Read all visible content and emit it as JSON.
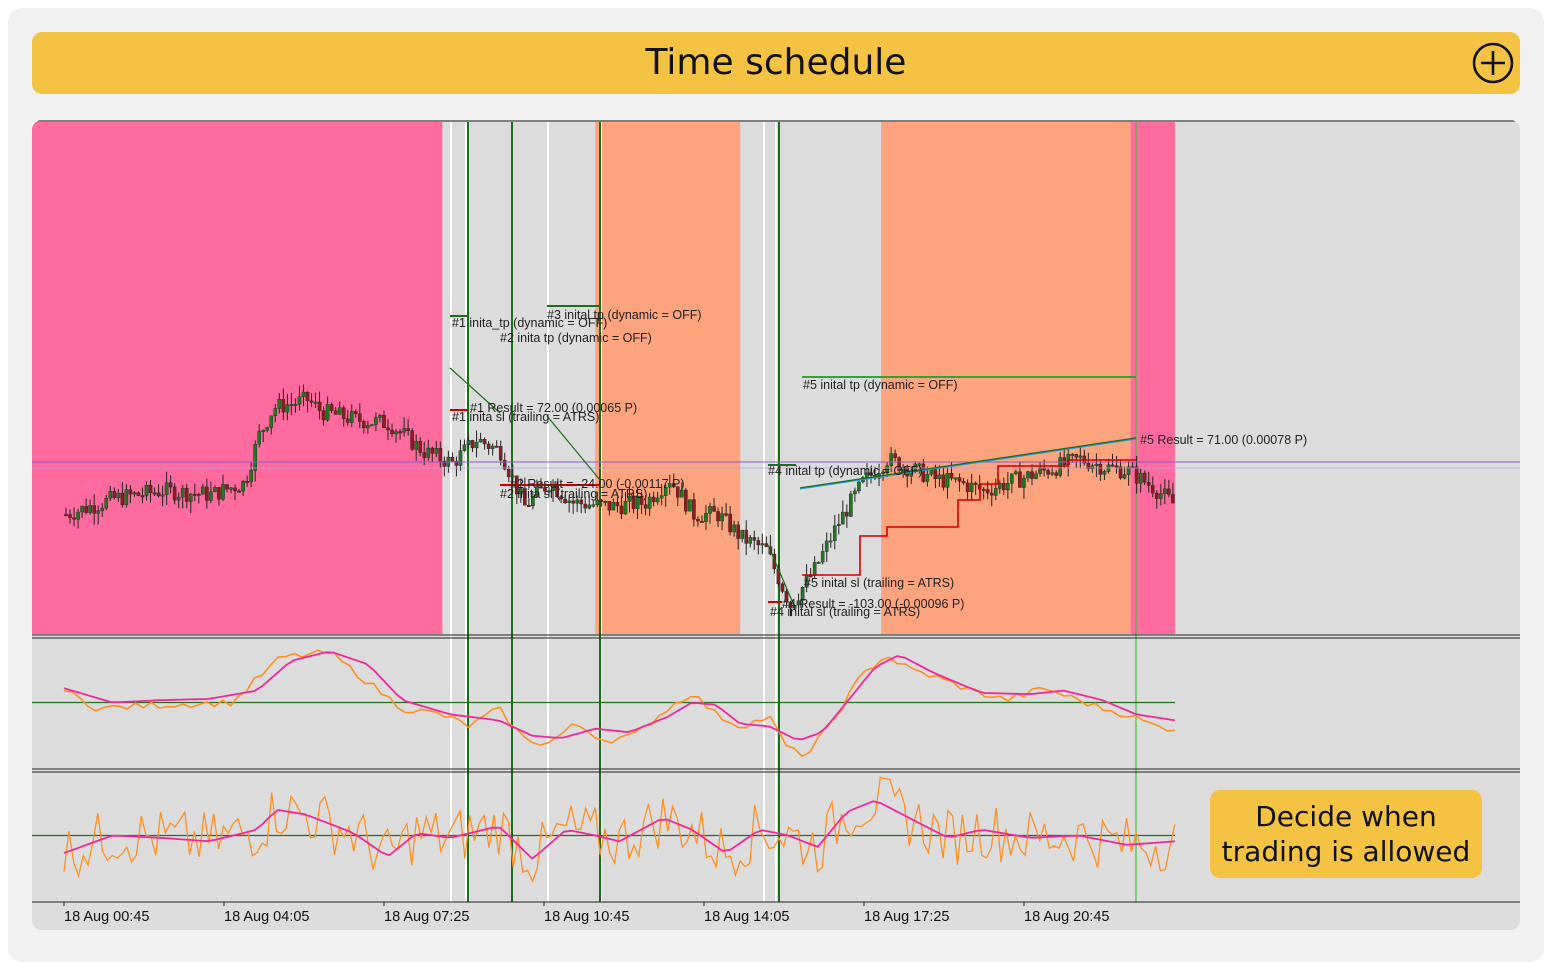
{
  "header": {
    "title": "Time schedule",
    "add_icon": "plus-circle-icon"
  },
  "callout": {
    "line1": "Decide when",
    "line2": "trading is allowed"
  },
  "colors": {
    "pink_session": "#ff6b9e",
    "orange_session": "#fda37d",
    "price_up": "#1f7a1f",
    "price_down": "#8b1e1e",
    "oscillator_fast": "#ff9020",
    "oscillator_slow": "#f0289a",
    "level_line": "#207020",
    "marker_line": "#1a6e1a"
  },
  "chart_data": {
    "type": "candlestick",
    "x_tick_labels": [
      "18 Aug 00:45",
      "18 Aug 04:05",
      "18 Aug 07:25",
      "18 Aug 10:45",
      "18 Aug 14:05",
      "18 Aug 17:25",
      "18 Aug 20:45"
    ],
    "sessions": [
      {
        "type": "pink",
        "from": "00:05",
        "to": "07:50"
      },
      {
        "type": "orange",
        "from": "11:00",
        "to": "14:00"
      },
      {
        "type": "orange",
        "from": "16:55",
        "to": "22:05"
      },
      {
        "type": "pink",
        "from": "22:05",
        "to": "23:00"
      }
    ],
    "price_path": [
      [
        0,
        0.28
      ],
      [
        0.5,
        0.3
      ],
      [
        1,
        0.32
      ],
      [
        2,
        0.34
      ],
      [
        3,
        0.33
      ],
      [
        3.7,
        0.36
      ],
      [
        4,
        0.48
      ],
      [
        4.3,
        0.55
      ],
      [
        5,
        0.57
      ],
      [
        5.3,
        0.54
      ],
      [
        6,
        0.52
      ],
      [
        6.7,
        0.51
      ],
      [
        7.4,
        0.44
      ],
      [
        8,
        0.41
      ],
      [
        8.5,
        0.47
      ],
      [
        9,
        0.44
      ],
      [
        9.5,
        0.3
      ],
      [
        10,
        0.36
      ],
      [
        10.5,
        0.31
      ],
      [
        11.3,
        0.3
      ],
      [
        12,
        0.31
      ],
      [
        12.5,
        0.37
      ],
      [
        13,
        0.28
      ],
      [
        13.5,
        0.28
      ],
      [
        14,
        0.22
      ],
      [
        14.5,
        0.19
      ],
      [
        15,
        0.05
      ],
      [
        15.5,
        0.14
      ],
      [
        16,
        0.26
      ],
      [
        16.5,
        0.36
      ],
      [
        17,
        0.42
      ],
      [
        18,
        0.37
      ],
      [
        18.5,
        0.36
      ],
      [
        19,
        0.34
      ],
      [
        20,
        0.38
      ],
      [
        21,
        0.42
      ],
      [
        21.5,
        0.4
      ],
      [
        22,
        0.39
      ],
      [
        22.5,
        0.35
      ],
      [
        23,
        0.3
      ]
    ],
    "annotations": [
      "#1 inita_tp (dynamic = OFF)",
      "#2 inita tp (dynamic = OFF)",
      "#3 inital tp (dynamic = OFF)",
      "#1 Result = 72.00 (0.00065 P)",
      "#1 inita sl (trailing = ATRS)",
      "#2 Result = -24.00 (-0.00117 P)",
      "#2 inita sl (trailing = ATRS)",
      "#5 inital tp (dynamic = OFF)",
      "#4 inital tp (dynamic = OFF)",
      "#5 inital sl (trailing = ATRS)",
      "#4 Result = -103.00 (-0.00096 P)",
      "#4 inital sl (trailing = ATRS)",
      "#5 Result = 71.00 (0.00078 P)"
    ],
    "osc1_fast": [
      [
        0,
        0.6
      ],
      [
        0.7,
        0.45
      ],
      [
        2,
        0.48
      ],
      [
        3.5,
        0.5
      ],
      [
        4,
        0.7
      ],
      [
        4.5,
        0.88
      ],
      [
        5.5,
        0.92
      ],
      [
        6.2,
        0.7
      ],
      [
        7,
        0.45
      ],
      [
        7.8,
        0.4
      ],
      [
        8.4,
        0.3
      ],
      [
        9,
        0.45
      ],
      [
        9.5,
        0.2
      ],
      [
        10,
        0.15
      ],
      [
        10.6,
        0.32
      ],
      [
        11.2,
        0.18
      ],
      [
        11.8,
        0.22
      ],
      [
        12.5,
        0.45
      ],
      [
        13,
        0.58
      ],
      [
        13.5,
        0.4
      ],
      [
        14,
        0.3
      ],
      [
        14.6,
        0.38
      ],
      [
        15,
        0.1
      ],
      [
        15.4,
        0.06
      ],
      [
        16,
        0.4
      ],
      [
        16.5,
        0.72
      ],
      [
        17,
        0.9
      ],
      [
        17.5,
        0.78
      ],
      [
        18,
        0.72
      ],
      [
        18.8,
        0.6
      ],
      [
        19.5,
        0.52
      ],
      [
        20.3,
        0.62
      ],
      [
        21,
        0.52
      ],
      [
        21.5,
        0.45
      ],
      [
        22,
        0.4
      ],
      [
        22.6,
        0.3
      ],
      [
        23,
        0.28
      ]
    ],
    "osc1_slow": [
      [
        0,
        0.62
      ],
      [
        1,
        0.5
      ],
      [
        2,
        0.52
      ],
      [
        3,
        0.53
      ],
      [
        4,
        0.6
      ],
      [
        4.7,
        0.85
      ],
      [
        5.5,
        0.93
      ],
      [
        6.3,
        0.82
      ],
      [
        7,
        0.52
      ],
      [
        8,
        0.4
      ],
      [
        9,
        0.35
      ],
      [
        9.7,
        0.22
      ],
      [
        10.3,
        0.2
      ],
      [
        11,
        0.28
      ],
      [
        11.7,
        0.25
      ],
      [
        12.5,
        0.38
      ],
      [
        13,
        0.5
      ],
      [
        13.5,
        0.48
      ],
      [
        14,
        0.32
      ],
      [
        14.6,
        0.3
      ],
      [
        15.2,
        0.18
      ],
      [
        15.7,
        0.25
      ],
      [
        16.2,
        0.5
      ],
      [
        16.8,
        0.8
      ],
      [
        17.3,
        0.9
      ],
      [
        18,
        0.75
      ],
      [
        19,
        0.58
      ],
      [
        20,
        0.57
      ],
      [
        20.7,
        0.6
      ],
      [
        21.5,
        0.52
      ],
      [
        22.2,
        0.4
      ],
      [
        23,
        0.35
      ]
    ],
    "osc1_level": 0.5,
    "osc2_slow": [
      [
        0,
        0.35
      ],
      [
        1,
        0.5
      ],
      [
        2,
        0.48
      ],
      [
        3,
        0.45
      ],
      [
        4,
        0.55
      ],
      [
        4.4,
        0.72
      ],
      [
        5,
        0.68
      ],
      [
        6,
        0.52
      ],
      [
        6.7,
        0.32
      ],
      [
        7.3,
        0.52
      ],
      [
        8,
        0.48
      ],
      [
        9,
        0.58
      ],
      [
        9.7,
        0.3
      ],
      [
        10.4,
        0.55
      ],
      [
        11,
        0.5
      ],
      [
        11.5,
        0.45
      ],
      [
        12.4,
        0.65
      ],
      [
        13,
        0.55
      ],
      [
        13.7,
        0.35
      ],
      [
        14.4,
        0.55
      ],
      [
        15,
        0.5
      ],
      [
        15.6,
        0.4
      ],
      [
        16.2,
        0.7
      ],
      [
        16.8,
        0.8
      ],
      [
        17.5,
        0.65
      ],
      [
        18.3,
        0.48
      ],
      [
        19,
        0.55
      ],
      [
        20,
        0.48
      ],
      [
        21,
        0.5
      ],
      [
        22,
        0.42
      ],
      [
        23,
        0.45
      ]
    ],
    "osc2_level": 0.5
  }
}
